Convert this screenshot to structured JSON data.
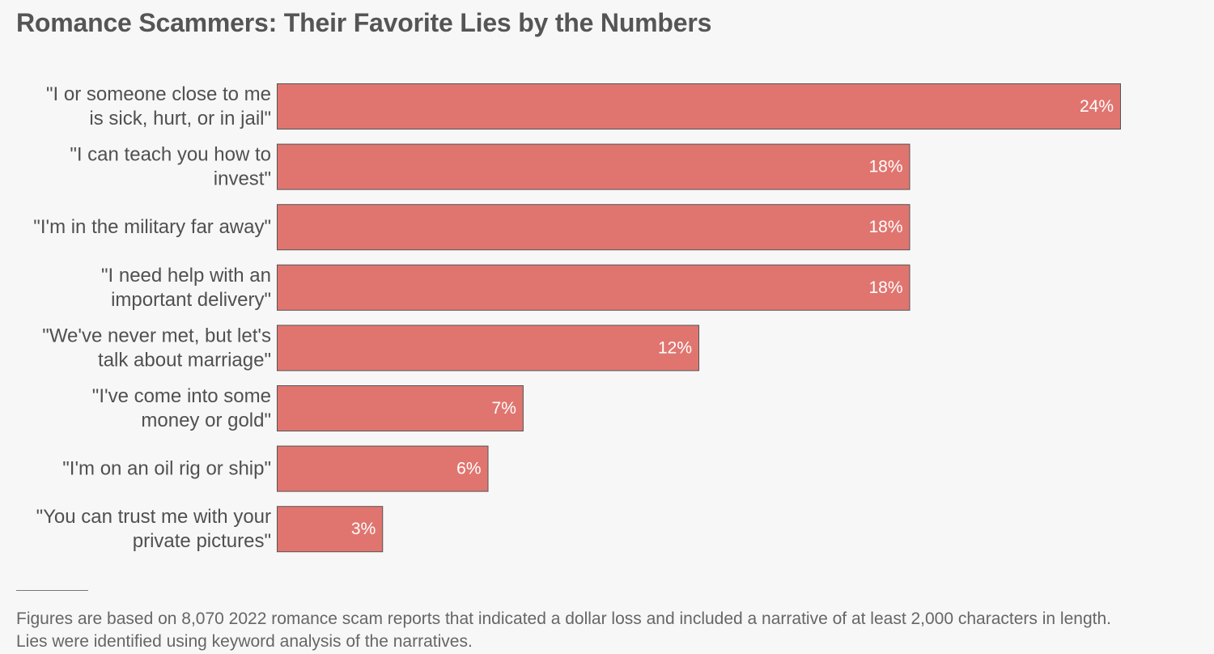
{
  "title": "Romance Scammers: Their Favorite Lies by the Numbers",
  "colors": {
    "bar_fill": "#e0756f",
    "bar_stroke": "#555555",
    "background": "#f7f7f7",
    "text": "#555555",
    "value_label": "#ffffff"
  },
  "chart_data": {
    "type": "bar",
    "orientation": "horizontal",
    "title": "Romance Scammers: Their Favorite Lies by the Numbers",
    "categories": [
      [
        "\"I or someone close to me",
        "is sick, hurt, or in jail\""
      ],
      [
        "\"I can teach you how to",
        "invest\""
      ],
      [
        "\"I'm in the military far away\""
      ],
      [
        "\"I need help with an",
        "important delivery\""
      ],
      [
        "\"We've never met, but let's",
        "talk about marriage\""
      ],
      [
        "\"I've come into some",
        "money or gold\""
      ],
      [
        "\"I'm on an oil rig or ship\""
      ],
      [
        "\"You can trust me with your",
        "private pictures\""
      ]
    ],
    "values": [
      24,
      18,
      18,
      18,
      12,
      7,
      6,
      3
    ],
    "value_labels": [
      "24%",
      "18%",
      "18%",
      "18%",
      "12%",
      "7%",
      "6%",
      "3%"
    ],
    "unit": "%",
    "xlim": [
      0,
      24
    ],
    "grid": false,
    "legend": "none"
  },
  "footnote": {
    "line1": "Figures are based on 8,070 2022 romance scam reports that indicated a dollar loss and included a narrative of at least 2,000 characters in length.",
    "line2": "Lies were identified using keyword analysis of the narratives."
  }
}
